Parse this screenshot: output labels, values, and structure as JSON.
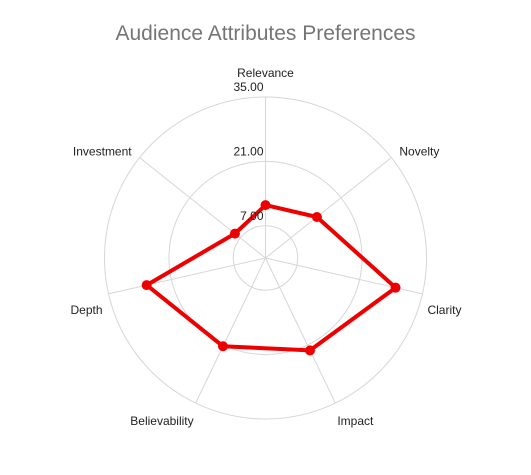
{
  "chart_data": {
    "type": "radar",
    "title": "Audience Attributes Preferences",
    "axes": [
      "Relevance",
      "Novelty",
      "Clarity",
      "Impact",
      "Believability",
      "Depth",
      "Investment"
    ],
    "series": [
      {
        "values": [
          11.5,
          14.3,
          29.0,
          22.3,
          21.3,
          26.5,
          8.5
        ]
      }
    ],
    "scale": {
      "min": 0,
      "max": 35
    },
    "tick_labels": [
      "7.00",
      "21.00",
      "35.00"
    ],
    "tick_values": [
      7,
      21,
      35
    ],
    "grid": true,
    "legend": "none",
    "line_color": "#ee0000",
    "grid_color": "#d6d6d6"
  }
}
